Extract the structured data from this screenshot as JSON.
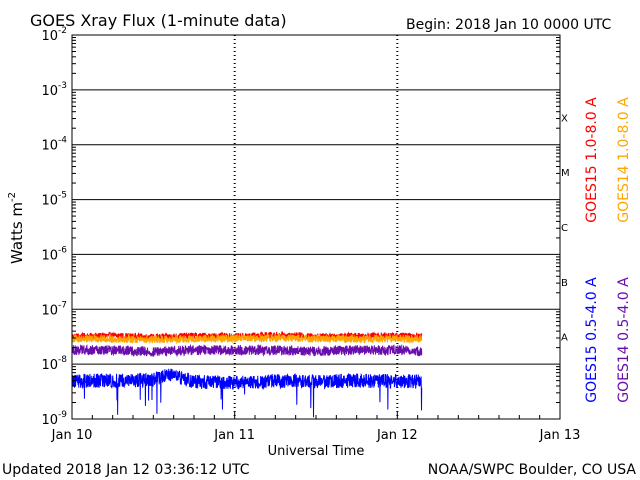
{
  "header": {
    "title": "GOES Xray Flux (1-minute data)",
    "begin": "Begin:  2018 Jan 10 0000 UTC"
  },
  "footer": {
    "updated": "Updated 2018 Jan 12 03:36:12 UTC",
    "credit": "NOAA/SWPC Boulder, CO USA"
  },
  "chart_data": {
    "type": "line",
    "title": "GOES Xray Flux (1-minute data)",
    "xlabel": "Universal Time",
    "ylabel": "Watts m",
    "ylabel_superscript": "-2",
    "yscale": "log",
    "ylim": [
      1e-09,
      0.01
    ],
    "x_categories": [
      "Jan 10",
      "Jan 11",
      "Jan 12",
      "Jan 13"
    ],
    "xlim_days": [
      0,
      3
    ],
    "yticks": [
      {
        "base": "10",
        "exp": "-2",
        "value": 0.01
      },
      {
        "base": "10",
        "exp": "-3",
        "value": 0.001
      },
      {
        "base": "10",
        "exp": "-4",
        "value": 0.0001
      },
      {
        "base": "10",
        "exp": "-5",
        "value": 1e-05
      },
      {
        "base": "10",
        "exp": "-6",
        "value": 1e-06
      },
      {
        "base": "10",
        "exp": "-7",
        "value": 1e-07
      },
      {
        "base": "10",
        "exp": "-8",
        "value": 1e-08
      },
      {
        "base": "10",
        "exp": "-9",
        "value": 1e-09
      }
    ],
    "flare_classes": [
      {
        "label": "X",
        "value": 0.0001
      },
      {
        "label": "M",
        "value": 1e-05
      },
      {
        "label": "C",
        "value": 1e-06
      },
      {
        "label": "B",
        "value": 1e-07
      },
      {
        "label": "A",
        "value": 1e-08
      }
    ],
    "grid": true,
    "legend_placement": "right",
    "series": [
      {
        "name": "GOES15 1.0-8.0 A",
        "color": "#ff0000",
        "x": [
          0.0,
          0.25,
          0.5,
          0.75,
          1.0,
          1.25,
          1.5,
          1.75,
          2.0,
          2.15
        ],
        "y": [
          3.2e-08,
          3.3e-08,
          3.1e-08,
          3.3e-08,
          3.2e-08,
          3.4e-08,
          3.2e-08,
          3.3e-08,
          3.3e-08,
          3.2e-08
        ]
      },
      {
        "name": "GOES14 1.0-8.0 A",
        "color": "#ffa500",
        "x": [
          0.0,
          0.25,
          0.5,
          0.75,
          1.0,
          1.25,
          1.5,
          1.75,
          2.0,
          2.15
        ],
        "y": [
          2.9e-08,
          2.9e-08,
          2.8e-08,
          2.9e-08,
          2.9e-08,
          3e-08,
          2.9e-08,
          2.9e-08,
          2.9e-08,
          2.9e-08
        ]
      },
      {
        "name": "GOES15 0.5-4.0 A",
        "color": "#0000ff",
        "x": [
          0.0,
          0.25,
          0.5,
          0.6,
          0.75,
          1.0,
          1.25,
          1.5,
          1.75,
          2.0,
          2.15
        ],
        "y": [
          5e-09,
          5e-09,
          5.2e-09,
          6.5e-09,
          4.8e-09,
          4.6e-09,
          5e-09,
          4.8e-09,
          5e-09,
          4.9e-09,
          4.8e-09
        ]
      },
      {
        "name": "GOES14 0.5-4.0 A",
        "color": "#6a0dad",
        "x": [
          0.0,
          0.25,
          0.5,
          0.75,
          1.0,
          1.25,
          1.5,
          1.75,
          2.0,
          2.15
        ],
        "y": [
          1.8e-08,
          1.8e-08,
          1.7e-08,
          1.8e-08,
          1.8e-08,
          1.8e-08,
          1.7e-08,
          1.8e-08,
          1.8e-08,
          1.7e-08
        ]
      }
    ]
  }
}
